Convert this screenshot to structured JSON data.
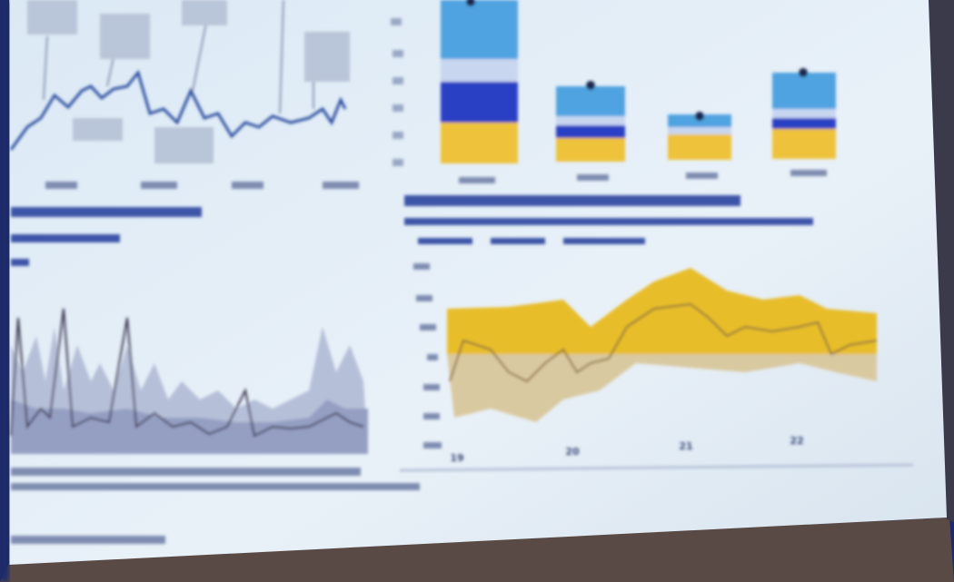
{
  "slide": {
    "right_chart": {
      "xticks": [
        "19",
        "20",
        "21",
        "22"
      ]
    }
  }
}
